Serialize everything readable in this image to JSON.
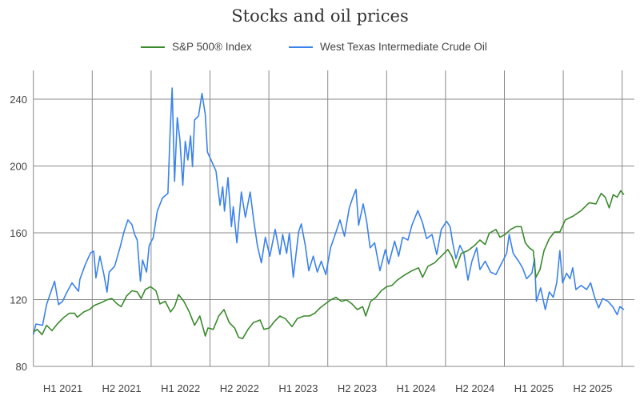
{
  "chart_data": {
    "type": "line",
    "title": "Stocks and oil prices",
    "xlabel": "",
    "ylabel": "",
    "xlim": [
      2021,
      2026.1
    ],
    "ylim": [
      80,
      258
    ],
    "grid": true,
    "legend_position": "top-center",
    "yticks": [
      80,
      120,
      160,
      200,
      240
    ],
    "xtick_boundaries": [
      2021,
      2021.5,
      2022,
      2022.5,
      2023,
      2023.5,
      2024,
      2024.5,
      2025,
      2025.5,
      2026
    ],
    "xtick_labels": [
      "H1 2021",
      "H2 2021",
      "H1 2022",
      "H2 2022",
      "H1 2023",
      "H2 2023",
      "H1 2024",
      "H2 2024",
      "H1 2025",
      "H2 2025"
    ],
    "series": [
      {
        "name": "S&P 500® Index",
        "color": "#3a8a2c",
        "points": [
          [
            2021.0,
            100.6
          ],
          [
            2021.033,
            102.2
          ],
          [
            2021.074,
            99
          ],
          [
            2021.112,
            104.6
          ],
          [
            2021.158,
            101.4
          ],
          [
            2021.203,
            105.4
          ],
          [
            2021.26,
            109.4
          ],
          [
            2021.305,
            111.8
          ],
          [
            2021.35,
            111.8
          ],
          [
            2021.373,
            109.4
          ],
          [
            2021.429,
            112.6
          ],
          [
            2021.475,
            114
          ],
          [
            2021.52,
            116.6
          ],
          [
            2021.577,
            118.2
          ],
          [
            2021.622,
            119.8
          ],
          [
            2021.667,
            120.6
          ],
          [
            2021.712,
            117.4
          ],
          [
            2021.746,
            115.8
          ],
          [
            2021.792,
            122.2
          ],
          [
            2021.837,
            125.3
          ],
          [
            2021.882,
            124.6
          ],
          [
            2021.916,
            120.6
          ],
          [
            2021.95,
            126
          ],
          [
            2021.995,
            127.7
          ],
          [
            2022.041,
            125.3
          ],
          [
            2022.075,
            117.4
          ],
          [
            2022.12,
            119
          ],
          [
            2022.165,
            112.6
          ],
          [
            2022.199,
            115.8
          ],
          [
            2022.233,
            123
          ],
          [
            2022.278,
            119
          ],
          [
            2022.324,
            112.6
          ],
          [
            2022.369,
            104.6
          ],
          [
            2022.414,
            110.2
          ],
          [
            2022.46,
            98.2
          ],
          [
            2022.483,
            103
          ],
          [
            2022.528,
            102.2
          ],
          [
            2022.574,
            110.2
          ],
          [
            2022.619,
            114
          ],
          [
            2022.664,
            106.2
          ],
          [
            2022.709,
            103
          ],
          [
            2022.743,
            97.4
          ],
          [
            2022.777,
            96.6
          ],
          [
            2022.823,
            102.2
          ],
          [
            2022.868,
            106.2
          ],
          [
            2022.925,
            107.8
          ],
          [
            2022.958,
            102.2
          ],
          [
            2023.004,
            103
          ],
          [
            2023.049,
            107
          ],
          [
            2023.094,
            110.2
          ],
          [
            2023.14,
            108.6
          ],
          [
            2023.196,
            103.8
          ],
          [
            2023.241,
            108.6
          ],
          [
            2023.298,
            110.2
          ],
          [
            2023.343,
            110.2
          ],
          [
            2023.389,
            111.8
          ],
          [
            2023.434,
            115
          ],
          [
            2023.479,
            117.4
          ],
          [
            2023.524,
            119.8
          ],
          [
            2023.57,
            121.4
          ],
          [
            2023.615,
            119
          ],
          [
            2023.66,
            119.8
          ],
          [
            2023.706,
            117.4
          ],
          [
            2023.751,
            114
          ],
          [
            2023.796,
            115.8
          ],
          [
            2023.823,
            110.2
          ],
          [
            2023.864,
            119
          ],
          [
            2023.909,
            121.4
          ],
          [
            2023.955,
            125.3
          ],
          [
            2024.0,
            127.7
          ],
          [
            2024.045,
            128.5
          ],
          [
            2024.091,
            131.7
          ],
          [
            2024.158,
            135
          ],
          [
            2024.215,
            137.3
          ],
          [
            2024.271,
            139
          ],
          [
            2024.305,
            133.3
          ],
          [
            2024.351,
            140
          ],
          [
            2024.407,
            142
          ],
          [
            2024.464,
            146
          ],
          [
            2024.52,
            150
          ],
          [
            2024.554,
            146
          ],
          [
            2024.588,
            139
          ],
          [
            2024.634,
            147.7
          ],
          [
            2024.69,
            149.3
          ],
          [
            2024.747,
            152.5
          ],
          [
            2024.792,
            155.7
          ],
          [
            2024.837,
            153
          ],
          [
            2024.871,
            159.7
          ],
          [
            2024.928,
            162
          ],
          [
            2024.962,
            157.3
          ],
          [
            2025.007,
            159
          ],
          [
            2025.052,
            162
          ],
          [
            2025.098,
            163.7
          ],
          [
            2025.143,
            163.7
          ],
          [
            2025.177,
            154
          ],
          [
            2025.211,
            151
          ],
          [
            2025.245,
            149.3
          ],
          [
            2025.268,
            133.3
          ],
          [
            2025.302,
            138
          ],
          [
            2025.336,
            149.3
          ],
          [
            2025.381,
            156.5
          ],
          [
            2025.426,
            160.5
          ],
          [
            2025.471,
            160.5
          ],
          [
            2025.517,
            167.7
          ],
          [
            2025.584,
            170
          ],
          [
            2025.652,
            173.3
          ],
          [
            2025.72,
            178
          ],
          [
            2025.777,
            177.3
          ],
          [
            2025.822,
            183.6
          ],
          [
            2025.856,
            181.3
          ],
          [
            2025.89,
            174.9
          ],
          [
            2025.924,
            182.8
          ],
          [
            2025.958,
            181.3
          ],
          [
            2025.988,
            185.2
          ],
          [
            2026.015,
            182.8
          ]
        ]
      },
      {
        "name": "West Texas Intermediate Crude Oil",
        "color": "#3b82ec",
        "points": [
          [
            2021.0,
            99
          ],
          [
            2021.022,
            105.4
          ],
          [
            2021.078,
            104.6
          ],
          [
            2021.112,
            117
          ],
          [
            2021.146,
            124
          ],
          [
            2021.18,
            131
          ],
          [
            2021.214,
            117
          ],
          [
            2021.248,
            119
          ],
          [
            2021.282,
            124
          ],
          [
            2021.328,
            130
          ],
          [
            2021.384,
            125
          ],
          [
            2021.395,
            132
          ],
          [
            2021.441,
            141
          ],
          [
            2021.486,
            148
          ],
          [
            2021.513,
            149
          ],
          [
            2021.531,
            133
          ],
          [
            2021.565,
            146
          ],
          [
            2021.599,
            135
          ],
          [
            2021.626,
            124.5
          ],
          [
            2021.644,
            136.5
          ],
          [
            2021.69,
            140
          ],
          [
            2021.735,
            151
          ],
          [
            2021.769,
            160.5
          ],
          [
            2021.803,
            167.7
          ],
          [
            2021.837,
            165
          ],
          [
            2021.86,
            159
          ],
          [
            2021.882,
            155.7
          ],
          [
            2021.909,
            131
          ],
          [
            2021.927,
            143.7
          ],
          [
            2021.961,
            136.5
          ],
          [
            2021.984,
            152.5
          ],
          [
            2022.018,
            157
          ],
          [
            2022.052,
            173
          ],
          [
            2022.097,
            181
          ],
          [
            2022.143,
            183.6
          ],
          [
            2022.161,
            219.6
          ],
          [
            2022.179,
            246.7
          ],
          [
            2022.199,
            190.8
          ],
          [
            2022.222,
            229
          ],
          [
            2022.244,
            216
          ],
          [
            2022.269,
            188.4
          ],
          [
            2022.29,
            214.8
          ],
          [
            2022.312,
            203.6
          ],
          [
            2022.335,
            218
          ],
          [
            2022.351,
            199.6
          ],
          [
            2022.369,
            227.6
          ],
          [
            2022.403,
            230
          ],
          [
            2022.432,
            243.5
          ],
          [
            2022.46,
            230.8
          ],
          [
            2022.478,
            208.4
          ],
          [
            2022.551,
            197
          ],
          [
            2022.585,
            176.5
          ],
          [
            2022.608,
            187.6
          ],
          [
            2022.623,
            173
          ],
          [
            2022.653,
            193
          ],
          [
            2022.682,
            163.7
          ],
          [
            2022.698,
            175.6
          ],
          [
            2022.728,
            154
          ],
          [
            2022.766,
            184.4
          ],
          [
            2022.8,
            169.3
          ],
          [
            2022.841,
            184.4
          ],
          [
            2022.872,
            166.9
          ],
          [
            2022.902,
            152.5
          ],
          [
            2022.936,
            142
          ],
          [
            2022.97,
            157.3
          ],
          [
            2023.008,
            146
          ],
          [
            2023.054,
            162
          ],
          [
            2023.094,
            147
          ],
          [
            2023.117,
            159
          ],
          [
            2023.151,
            147.7
          ],
          [
            2023.174,
            159.7
          ],
          [
            2023.207,
            133.3
          ],
          [
            2023.253,
            160.5
          ],
          [
            2023.275,
            165.3
          ],
          [
            2023.309,
            152.5
          ],
          [
            2023.339,
            137.3
          ],
          [
            2023.377,
            146
          ],
          [
            2023.411,
            136.5
          ],
          [
            2023.445,
            143
          ],
          [
            2023.484,
            135
          ],
          [
            2023.524,
            151
          ],
          [
            2023.57,
            160.5
          ],
          [
            2023.604,
            167.7
          ],
          [
            2023.642,
            158
          ],
          [
            2023.683,
            174.9
          ],
          [
            2023.717,
            182
          ],
          [
            2023.74,
            186
          ],
          [
            2023.762,
            164.5
          ],
          [
            2023.801,
            177.3
          ],
          [
            2023.83,
            166.9
          ],
          [
            2023.86,
            151
          ],
          [
            2023.898,
            154
          ],
          [
            2023.943,
            137.3
          ],
          [
            2023.989,
            150
          ],
          [
            2024.018,
            141.3
          ],
          [
            2024.068,
            155
          ],
          [
            2024.102,
            146
          ],
          [
            2024.136,
            157.3
          ],
          [
            2024.181,
            155.7
          ],
          [
            2024.215,
            164.5
          ],
          [
            2024.265,
            173.3
          ],
          [
            2024.305,
            166
          ],
          [
            2024.339,
            156.5
          ],
          [
            2024.385,
            159
          ],
          [
            2024.425,
            147
          ],
          [
            2024.464,
            162
          ],
          [
            2024.509,
            166.9
          ],
          [
            2024.539,
            163.7
          ],
          [
            2024.561,
            154
          ],
          [
            2024.588,
            144.5
          ],
          [
            2024.622,
            152.5
          ],
          [
            2024.656,
            147.7
          ],
          [
            2024.69,
            131.7
          ],
          [
            2024.724,
            143
          ],
          [
            2024.765,
            151
          ],
          [
            2024.792,
            138
          ],
          [
            2024.837,
            143
          ],
          [
            2024.883,
            136.5
          ],
          [
            2024.928,
            135
          ],
          [
            2024.973,
            141.3
          ],
          [
            2025.019,
            147.7
          ],
          [
            2025.041,
            159
          ],
          [
            2025.075,
            147.7
          ],
          [
            2025.12,
            143
          ],
          [
            2025.154,
            139
          ],
          [
            2025.188,
            132.5
          ],
          [
            2025.234,
            135.8
          ],
          [
            2025.256,
            144.5
          ],
          [
            2025.272,
            119
          ],
          [
            2025.308,
            127
          ],
          [
            2025.347,
            114
          ],
          [
            2025.381,
            124.6
          ],
          [
            2025.415,
            121.4
          ],
          [
            2025.444,
            130
          ],
          [
            2025.471,
            149.3
          ],
          [
            2025.494,
            130
          ],
          [
            2025.528,
            135.8
          ],
          [
            2025.557,
            132.5
          ],
          [
            2025.58,
            139
          ],
          [
            2025.607,
            126
          ],
          [
            2025.652,
            128.5
          ],
          [
            2025.698,
            126
          ],
          [
            2025.732,
            130
          ],
          [
            2025.766,
            121.4
          ],
          [
            2025.8,
            115
          ],
          [
            2025.834,
            120.6
          ],
          [
            2025.879,
            119
          ],
          [
            2025.92,
            115.8
          ],
          [
            2025.958,
            111
          ],
          [
            2025.981,
            115.8
          ],
          [
            2026.015,
            114
          ]
        ]
      }
    ]
  }
}
